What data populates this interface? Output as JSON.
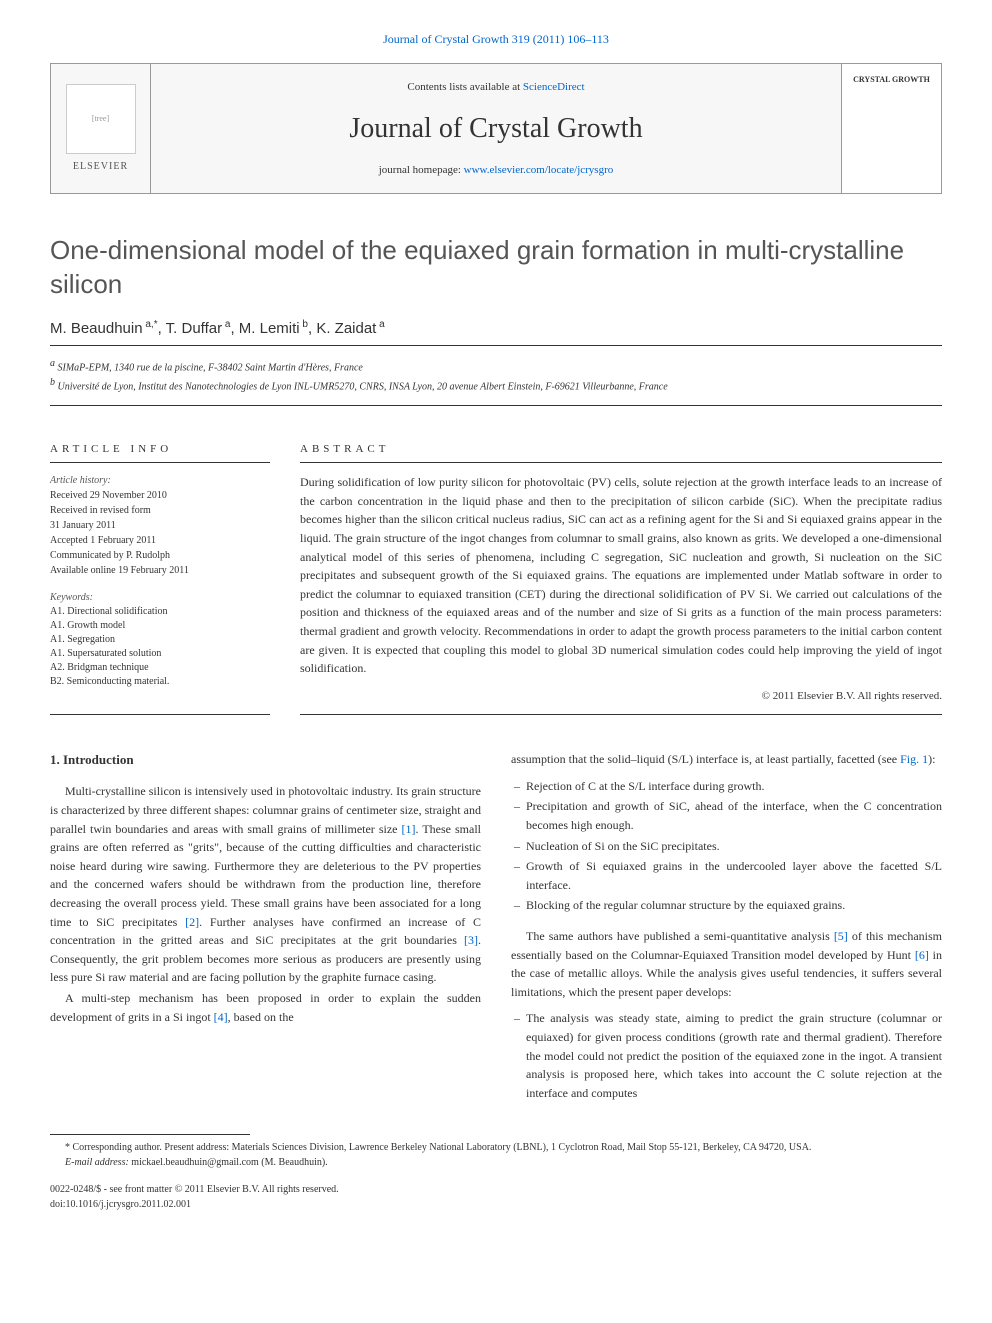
{
  "header": {
    "citation": "Journal of Crystal Growth 319 (2011) 106–113",
    "contents_prefix": "Contents lists available at ",
    "sciencedirect": "ScienceDirect",
    "journal_name": "Journal of Crystal Growth",
    "homepage_prefix": "journal homepage: ",
    "homepage_url": "www.elsevier.com/locate/jcrysgro",
    "publisher": "ELSEVIER",
    "crystal_label": "CRYSTAL GROWTH"
  },
  "article": {
    "title": "One-dimensional model of the equiaxed grain formation in multi-crystalline silicon",
    "authors": [
      {
        "name": "M. Beaudhuin",
        "marks": "a,*"
      },
      {
        "name": "T. Duffar",
        "marks": "a"
      },
      {
        "name": "M. Lemiti",
        "marks": "b"
      },
      {
        "name": "K. Zaidat",
        "marks": "a"
      }
    ],
    "affiliations": [
      {
        "mark": "a",
        "text": "SIMaP-EPM, 1340 rue de la piscine, F-38402 Saint Martin d'Hères, France"
      },
      {
        "mark": "b",
        "text": "Université de Lyon, Institut des Nanotechnologies de Lyon INL-UMR5270, CNRS, INSA Lyon, 20 avenue Albert Einstein, F-69621 Villeurbanne, France"
      }
    ]
  },
  "info": {
    "heading": "ARTICLE INFO",
    "history_label": "Article history:",
    "history": [
      "Received 29 November 2010",
      "Received in revised form",
      "31 January 2011",
      "Accepted 1 February 2011",
      "Communicated by P. Rudolph",
      "Available online 19 February 2011"
    ],
    "keywords_label": "Keywords:",
    "keywords": [
      "A1. Directional solidification",
      "A1. Growth model",
      "A1. Segregation",
      "A1. Supersaturated solution",
      "A2. Bridgman technique",
      "B2. Semiconducting material."
    ]
  },
  "abstract": {
    "heading": "ABSTRACT",
    "text": "During solidification of low purity silicon for photovoltaic (PV) cells, solute rejection at the growth interface leads to an increase of the carbon concentration in the liquid phase and then to the precipitation of silicon carbide (SiC). When the precipitate radius becomes higher than the silicon critical nucleus radius, SiC can act as a refining agent for the Si and Si equiaxed grains appear in the liquid. The grain structure of the ingot changes from columnar to small grains, also known as grits. We developed a one-dimensional analytical model of this series of phenomena, including C segregation, SiC nucleation and growth, Si nucleation on the SiC precipitates and subsequent growth of the Si equiaxed grains. The equations are implemented under Matlab software in order to predict the columnar to equiaxed transition (CET) during the directional solidification of PV Si. We carried out calculations of the position and thickness of the equiaxed areas and of the number and size of Si grits as a function of the main process parameters: thermal gradient and growth velocity. Recommendations in order to adapt the growth process parameters to the initial carbon content are given. It is expected that coupling this model to global 3D numerical simulation codes could help improving the yield of ingot solidification.",
    "copyright": "© 2011 Elsevier B.V. All rights reserved."
  },
  "body": {
    "section_heading": "1. Introduction",
    "col1_p1_a": "Multi-crystalline silicon is intensively used in photovoltaic industry. Its grain structure is characterized by three different shapes: columnar grains of centimeter size, straight and parallel twin boundaries and areas with small grains of millimeter size ",
    "col1_p1_ref1": "[1]",
    "col1_p1_b": ". These small grains are often referred as \"grits\", because of the cutting difficulties and characteristic noise heard during wire sawing. Furthermore they are deleterious to the PV properties and the concerned wafers should be withdrawn from the production line, therefore decreasing the overall process yield. These small grains have been associated for a long time to SiC precipitates ",
    "col1_p1_ref2": "[2]",
    "col1_p1_c": ". Further analyses have confirmed an increase of C concentration in the gritted areas and SiC precipitates at the grit boundaries ",
    "col1_p1_ref3": "[3]",
    "col1_p1_d": ". Consequently, the grit problem becomes more serious as producers are presently using less pure Si raw material and are facing pollution by the graphite furnace casing.",
    "col1_p2_a": "A multi-step mechanism has been proposed in order to explain the sudden development of grits in a Si ingot ",
    "col1_p2_ref4": "[4]",
    "col1_p2_b": ", based on the",
    "col2_p1_a": "assumption that the solid–liquid (S/L) interface is, at least partially, facetted (see ",
    "col2_p1_fig": "Fig. 1",
    "col2_p1_b": "):",
    "bullets1": [
      "Rejection of C at the S/L interface during growth.",
      "Precipitation and growth of SiC, ahead of the interface, when the C concentration becomes high enough.",
      "Nucleation of Si on the SiC precipitates.",
      "Growth of Si equiaxed grains in the undercooled layer above the facetted S/L interface.",
      "Blocking of the regular columnar structure by the equiaxed grains."
    ],
    "col2_p2_a": "The same authors have published a semi-quantitative analysis ",
    "col2_p2_ref5": "[5]",
    "col2_p2_b": " of this mechanism essentially based on the Columnar-Equiaxed Transition model developed by Hunt ",
    "col2_p2_ref6": "[6]",
    "col2_p2_c": " in the case of metallic alloys. While the analysis gives useful tendencies, it suffers several limitations, which the present paper develops:",
    "bullets2": [
      "The analysis was steady state, aiming to predict the grain structure (columnar or equiaxed) for given process conditions (growth rate and thermal gradient). Therefore the model could not predict the position of the equiaxed zone in the ingot. A transient analysis is proposed here, which takes into account the C solute rejection at the interface and computes"
    ]
  },
  "footer": {
    "corresponding": "* Corresponding author. Present address: Materials Sciences Division, Lawrence Berkeley National Laboratory (LBNL), 1 Cyclotron Road, Mail Stop 55-121, Berkeley, CA 94720, USA.",
    "email_label": "E-mail address:",
    "email": "mickael.beaudhuin@gmail.com (M. Beaudhuin).",
    "pub_note": "0022-0248/$ - see front matter © 2011 Elsevier B.V. All rights reserved.",
    "doi": "doi:10.1016/j.jcrysgro.2011.02.001"
  }
}
